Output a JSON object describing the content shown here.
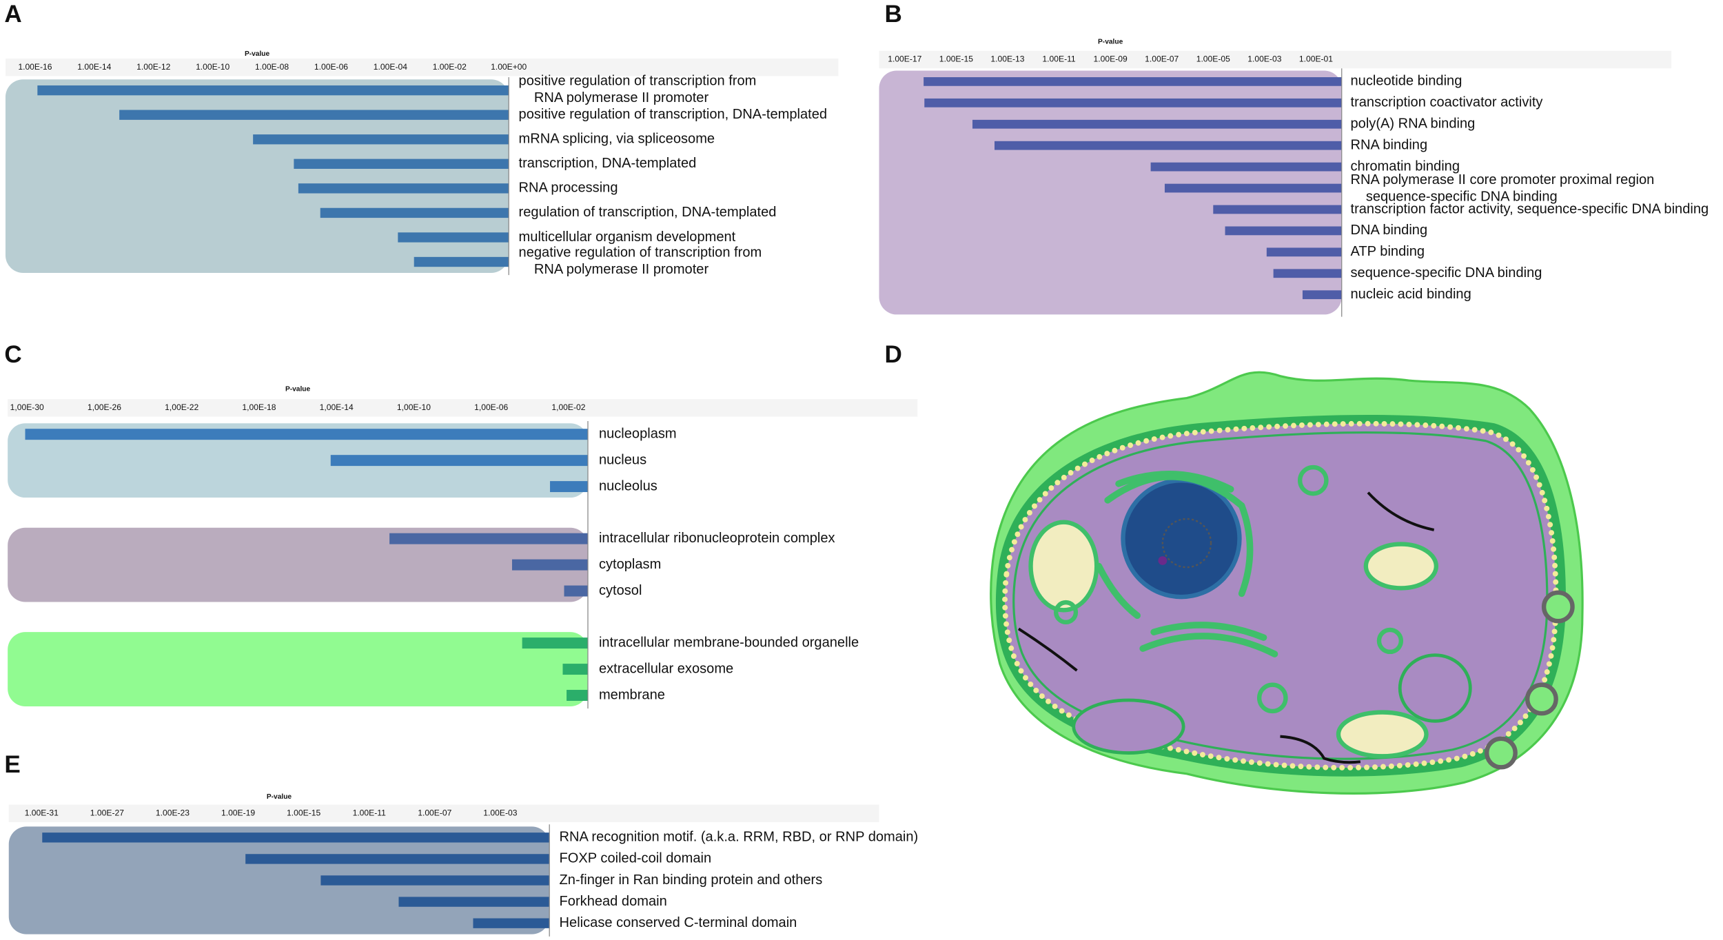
{
  "chart_data": [
    {
      "panel_label": "A",
      "type": "bar",
      "orientation": "horizontal",
      "x_label": "P-value",
      "log_x": true,
      "xlim": [
        1e-17,
        1
      ],
      "xticks": [
        {
          "value": 1e-16,
          "label": "1.00E-16"
        },
        {
          "value": 1e-14,
          "label": "1.00E-14"
        },
        {
          "value": 1e-12,
          "label": "1.00E-12"
        },
        {
          "value": 1e-10,
          "label": "1.00E-10"
        },
        {
          "value": 1e-08,
          "label": "1.00E-08"
        },
        {
          "value": 1e-06,
          "label": "1.00E-06"
        },
        {
          "value": 0.0001,
          "label": "1.00E-04"
        },
        {
          "value": 0.01,
          "label": "1.00E-02"
        },
        {
          "value": 1,
          "label": "1.00E+00"
        }
      ],
      "categories": [
        "positive regulation of transcription from\nRNA polymerase II promoter",
        "positive regulation of transcription, DNA-templated",
        "mRNA splicing, via spliceosome",
        "transcription, DNA-templated",
        "RNA processing",
        "regulation of transcription, DNA-templated",
        "multicellular organism development",
        "negative regulation of transcription from\nRNA polymerase II promoter"
      ],
      "values": [
        1.2e-16,
        7e-14,
        2.3e-09,
        5.5e-08,
        7.8e-08,
        4.3e-07,
        0.00018,
        0.00063
      ],
      "color": "#3d76ad",
      "background": "#b4cad0"
    },
    {
      "panel_label": "B",
      "type": "bar",
      "orientation": "horizontal",
      "x_label": "P-value",
      "log_x": true,
      "xlim": [
        1e-18,
        1
      ],
      "xticks": [
        {
          "value": 1e-17,
          "label": "1.00E-17"
        },
        {
          "value": 1e-15,
          "label": "1.00E-15"
        },
        {
          "value": 1e-13,
          "label": "1.00E-13"
        },
        {
          "value": 1e-11,
          "label": "1.00E-11"
        },
        {
          "value": 1e-09,
          "label": "1.00E-09"
        },
        {
          "value": 1e-07,
          "label": "1.00E-07"
        },
        {
          "value": 1e-05,
          "label": "1.00E-05"
        },
        {
          "value": 0.001,
          "label": "1.00E-03"
        },
        {
          "value": 0.1,
          "label": "1.00E-01"
        }
      ],
      "categories": [
        "nucleotide binding",
        "transcription coactivator activity",
        "poly(A) RNA binding",
        "RNA binding",
        "chromatin binding",
        "RNA polymerase II core promoter proximal region\nsequence-specific DNA binding",
        "transcription factor activity, sequence-specific DNA binding",
        "DNA binding",
        "ATP binding",
        "sequence-specific DNA binding",
        "nucleic acid binding"
      ],
      "values": [
        5.4e-17,
        5.8e-17,
        4.3e-15,
        3.1e-14,
        3.7e-08,
        1.3e-07,
        1e-05,
        2.9e-05,
        0.0012,
        0.0022,
        0.03
      ],
      "color": "#4f5da8",
      "background": "#c5b1d2"
    },
    {
      "panel_label": "C",
      "type": "bar",
      "orientation": "horizontal",
      "x_label": "P-value",
      "log_x": true,
      "xlim": [
        1e-31,
        0.1
      ],
      "xticks": [
        {
          "value": 1e-30,
          "label": "1,00E-30"
        },
        {
          "value": 1e-26,
          "label": "1,00E-26"
        },
        {
          "value": 1e-22,
          "label": "1,00E-22"
        },
        {
          "value": 1e-18,
          "label": "1,00E-18"
        },
        {
          "value": 1e-14,
          "label": "1,00E-14"
        },
        {
          "value": 1e-10,
          "label": "1,00E-10"
        },
        {
          "value": 1e-06,
          "label": "1,00E-06"
        },
        {
          "value": 0.01,
          "label": "1,00E-02"
        }
      ],
      "groups": [
        {
          "categories": [
            "nucleoplasm",
            "nucleus",
            "nucleolus"
          ],
          "values": [
            8e-31,
            5e-15,
            0.0011
          ],
          "color": "#3c7cbb",
          "background": "#b8d3da"
        },
        {
          "categories": [
            "intracellular ribonucleoprotein complex",
            "cytoplasm",
            "cytosol"
          ],
          "values": [
            5.5e-12,
            1.2e-05,
            0.0059
          ],
          "color": "#4a67a3",
          "background": "#b6a8ba"
        },
        {
          "categories": [
            "intracellular membrane-bounded organelle",
            "extracellular exosome",
            "membrane"
          ],
          "values": [
            4e-05,
            0.005,
            0.0079
          ],
          "color": "#2bae6a",
          "background": "#8bfb8b"
        }
      ]
    },
    {
      "panel_label": "E",
      "type": "bar",
      "orientation": "horizontal",
      "x_label": "P-value",
      "log_x": true,
      "xlim": [
        1e-33,
        1
      ],
      "xticks": [
        {
          "value": 1e-31,
          "label": "1.00E-31"
        },
        {
          "value": 1e-27,
          "label": "1.00E-27"
        },
        {
          "value": 1e-23,
          "label": "1.00E-23"
        },
        {
          "value": 1e-19,
          "label": "1.00E-19"
        },
        {
          "value": 1e-15,
          "label": "1.00E-15"
        },
        {
          "value": 1e-11,
          "label": "1.00E-11"
        },
        {
          "value": 1e-07,
          "label": "1.00E-07"
        },
        {
          "value": 0.001,
          "label": "1.00E-03"
        }
      ],
      "categories": [
        "RNA recognition motif. (a.k.a. RRM, RBD, or RNP domain)",
        "FOXP coiled-coil domain",
        "Zn-finger in Ran binding protein and others",
        "Forkhead domain",
        "Helicase conserved C-terminal domain"
      ],
      "values": [
        1.1e-31,
        2.8e-19,
        1.1e-14,
        6.3e-10,
        2.2e-05
      ],
      "color": "#2b5a96",
      "background": "#8d9fb5"
    }
  ],
  "diagram": {
    "panel_label": "D"
  }
}
